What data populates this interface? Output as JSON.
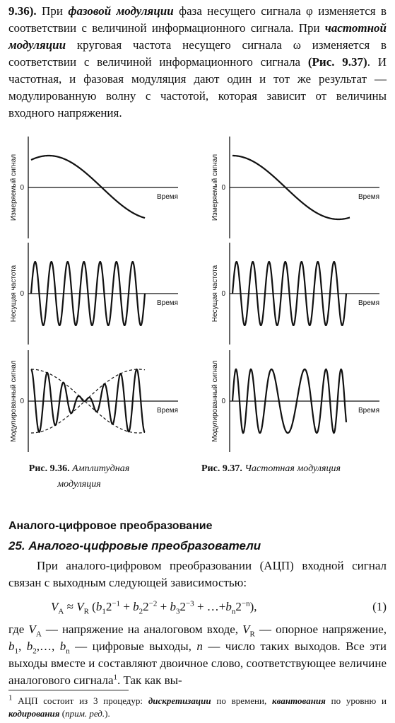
{
  "intro": {
    "parts": [
      "9.36).",
      " При ",
      "фазовой модуляции",
      " фаза несущего сигнала φ изменяется в соответствии с величиной информационного сигнала. При ",
      "частотной модуляции",
      " круговая частота несущего сигнала ω изменяется в соответствии с величиной информационного сигнала ",
      "(Рис. 9.37)",
      ". И частотная, и фазовая модуляция дают один и тот же результат — модулированную волну с частотой, которая зависит от величины входного напряжения."
    ]
  },
  "figures": [
    {
      "panels": [
        {
          "y_label": "Измеряемый сигнал",
          "zero": "0",
          "x_label": "Время"
        },
        {
          "y_label": "Несущая частота",
          "zero": "0",
          "x_label": "Время"
        },
        {
          "y_label": "Модулированный сигнал",
          "zero": "0",
          "x_label": "Время"
        }
      ],
      "caption": {
        "number": "Рис. 9.36.",
        "text": "Амплитудная модуляция"
      }
    },
    {
      "panels": [
        {
          "y_label": "Измеряемый сигнал",
          "zero": "0",
          "x_label": "Время"
        },
        {
          "y_label": "Несущая частота",
          "zero": "0",
          "x_label": "Время"
        },
        {
          "y_label": "Модулированный сигнал",
          "zero": "0",
          "x_label": "Время"
        }
      ],
      "caption": {
        "number": "Рис. 9.37.",
        "text": "Частотная модуляция"
      }
    }
  ],
  "section": {
    "title": "Аналого-цифровое преобразование",
    "subtitle": "25. Аналого-цифровые преобразователи"
  },
  "paragraph": "При аналого-цифровом преобразовании (АЦП) входной сигнал связан с выходным следующей зависимостью:",
  "formula": {
    "parts": [
      "V",
      "A",
      " ≈ ",
      "V",
      "R",
      " (",
      "b",
      "1",
      "2",
      "−1",
      " + ",
      "b",
      "2",
      "2",
      "−2",
      " + ",
      "b",
      "3",
      "2",
      "−3",
      " + …+",
      "b",
      "n",
      "2",
      "−n",
      "),"
    ],
    "number": "(1)"
  },
  "definitions": {
    "parts": [
      "где ",
      "V",
      "A",
      " — напряжение на аналоговом входе, ",
      "V",
      "R",
      " — опорное напряжение, ",
      "b",
      "1",
      ", ",
      "b",
      "2",
      ",…, ",
      "b",
      "n",
      " — цифровые выходы, ",
      "n",
      " — число таких выходов. Все эти выходы вместе и составляют двоичное слово, соответствующее величине аналогового сигнала",
      "1",
      ". Так как вы-"
    ]
  },
  "footnote": {
    "parts": [
      "1",
      " АЦП состоит из 3 процедур: ",
      "дискретизации",
      " по времени, ",
      "квантования",
      " по уровню и ",
      "кодирования",
      " (",
      "прим. ред.",
      ")."
    ]
  }
}
